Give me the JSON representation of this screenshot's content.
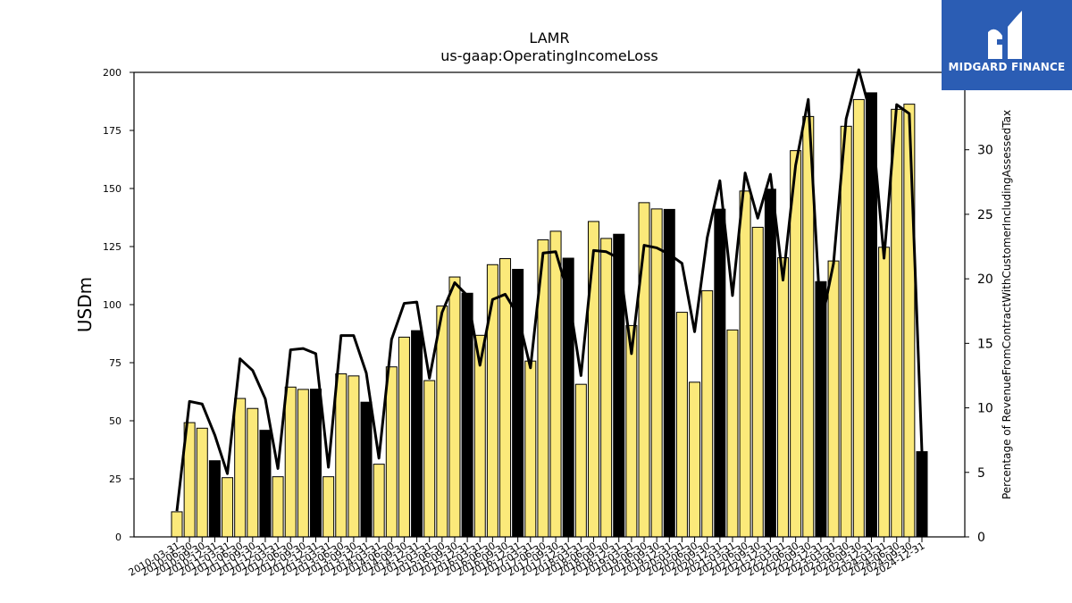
{
  "chart_data": {
    "type": "bar",
    "title": "LAMR",
    "subtitle": "us-gaap:OperatingIncomeLoss",
    "ylabel": "USDm",
    "y2label": "Percentage of RevenueFromContractWithCustomerIncludingAssessedTax",
    "ylim": [
      0,
      200
    ],
    "y2lim": [
      0,
      36
    ],
    "yticks": [
      0,
      25,
      50,
      75,
      100,
      125,
      150,
      175,
      200
    ],
    "y2ticks": [
      0,
      5,
      10,
      15,
      20,
      25,
      30,
      35
    ],
    "categories": [
      "2010-03-31",
      "2010-06-30",
      "2010-09-30",
      "2010-12-31",
      "2011-03-31",
      "2011-06-30",
      "2011-09-30",
      "2011-12-31",
      "2012-03-31",
      "2012-06-30",
      "2012-09-30",
      "2012-12-31",
      "2013-03-31",
      "2013-06-30",
      "2013-09-30",
      "2013-12-31",
      "2014-03-31",
      "2014-06-30",
      "2014-09-30",
      "2014-12-31",
      "2015-03-31",
      "2015-06-30",
      "2015-09-30",
      "2015-12-31",
      "2016-03-31",
      "2016-06-30",
      "2016-09-30",
      "2016-12-31",
      "2017-03-31",
      "2017-06-30",
      "2017-09-30",
      "2017-12-31",
      "2018-03-31",
      "2018-06-30",
      "2018-09-30",
      "2018-12-31",
      "2019-03-31",
      "2019-06-30",
      "2019-09-30",
      "2019-12-31",
      "2020-03-31",
      "2020-06-30",
      "2020-09-30",
      "2020-12-31",
      "2021-03-31",
      "2021-06-30",
      "2021-09-30",
      "2021-12-31",
      "2022-03-31",
      "2022-06-30",
      "2022-09-30",
      "2022-12-31",
      "2023-03-31",
      "2023-06-30",
      "2023-09-30",
      "2023-12-31",
      "2024-03-31",
      "2024-06-30",
      "2024-09-30",
      "2024-12-31"
    ],
    "values": [
      10.8,
      49.2,
      46.8,
      32.8,
      25.5,
      59.6,
      55.3,
      45.9,
      25.9,
      64.5,
      63.5,
      63.6,
      25.9,
      70.2,
      69.3,
      58.0,
      31.3,
      73.2,
      86.0,
      88.8,
      67.3,
      99.4,
      111.9,
      104.9,
      86.8,
      117.2,
      119.8,
      115.2,
      75.7,
      127.9,
      131.6,
      120.0,
      65.7,
      135.8,
      128.5,
      130.3,
      91.0,
      143.9,
      141.2,
      141.0,
      96.7,
      66.6,
      106.0,
      141.1,
      89.1,
      148.9,
      133.3,
      149.7,
      120.2,
      166.3,
      181.0,
      109.9,
      118.8,
      176.8,
      188.3,
      191.2,
      124.7,
      184.1,
      186.3,
      36.7
    ],
    "series_line": [
      2.0,
      10.5,
      10.3,
      7.9,
      4.9,
      13.8,
      12.9,
      10.7,
      5.3,
      14.5,
      14.6,
      14.2,
      5.4,
      15.6,
      15.6,
      12.7,
      6.1,
      15.3,
      18.1,
      18.2,
      12.3,
      17.4,
      19.7,
      18.7,
      13.3,
      18.4,
      18.8,
      17.2,
      13.1,
      22.0,
      22.1,
      18.8,
      12.5,
      22.2,
      22.1,
      21.6,
      14.2,
      22.6,
      22.4,
      21.9,
      21.2,
      15.9,
      23.2,
      27.6,
      18.7,
      28.2,
      24.7,
      28.1,
      19.9,
      28.8,
      33.9,
      16.4,
      21.2,
      32.4,
      36.2,
      32.6,
      21.6,
      33.5,
      32.8,
      6.6
    ],
    "line_values": [
      null,
      null,
      null,
      null,
      null,
      null,
      null,
      null,
      null,
      null,
      null,
      null,
      null,
      null,
      null,
      null,
      null,
      null,
      null,
      null,
      null,
      null,
      null,
      null,
      null,
      null,
      null,
      null,
      null,
      null,
      null,
      null,
      null,
      null,
      null,
      null,
      null,
      null,
      null,
      null,
      null,
      null,
      null,
      null,
      null,
      null,
      null,
      null,
      null,
      null,
      null,
      null,
      null,
      null,
      null,
      null,
      null,
      null,
      null,
      null
    ],
    "highlight_color": "#000000",
    "bar_color": "#fbe97a",
    "line_color": "#000000",
    "grid": false
  },
  "logo": {
    "text": "MIDGARD FINANCE",
    "bg_color": "#2b5db4"
  }
}
